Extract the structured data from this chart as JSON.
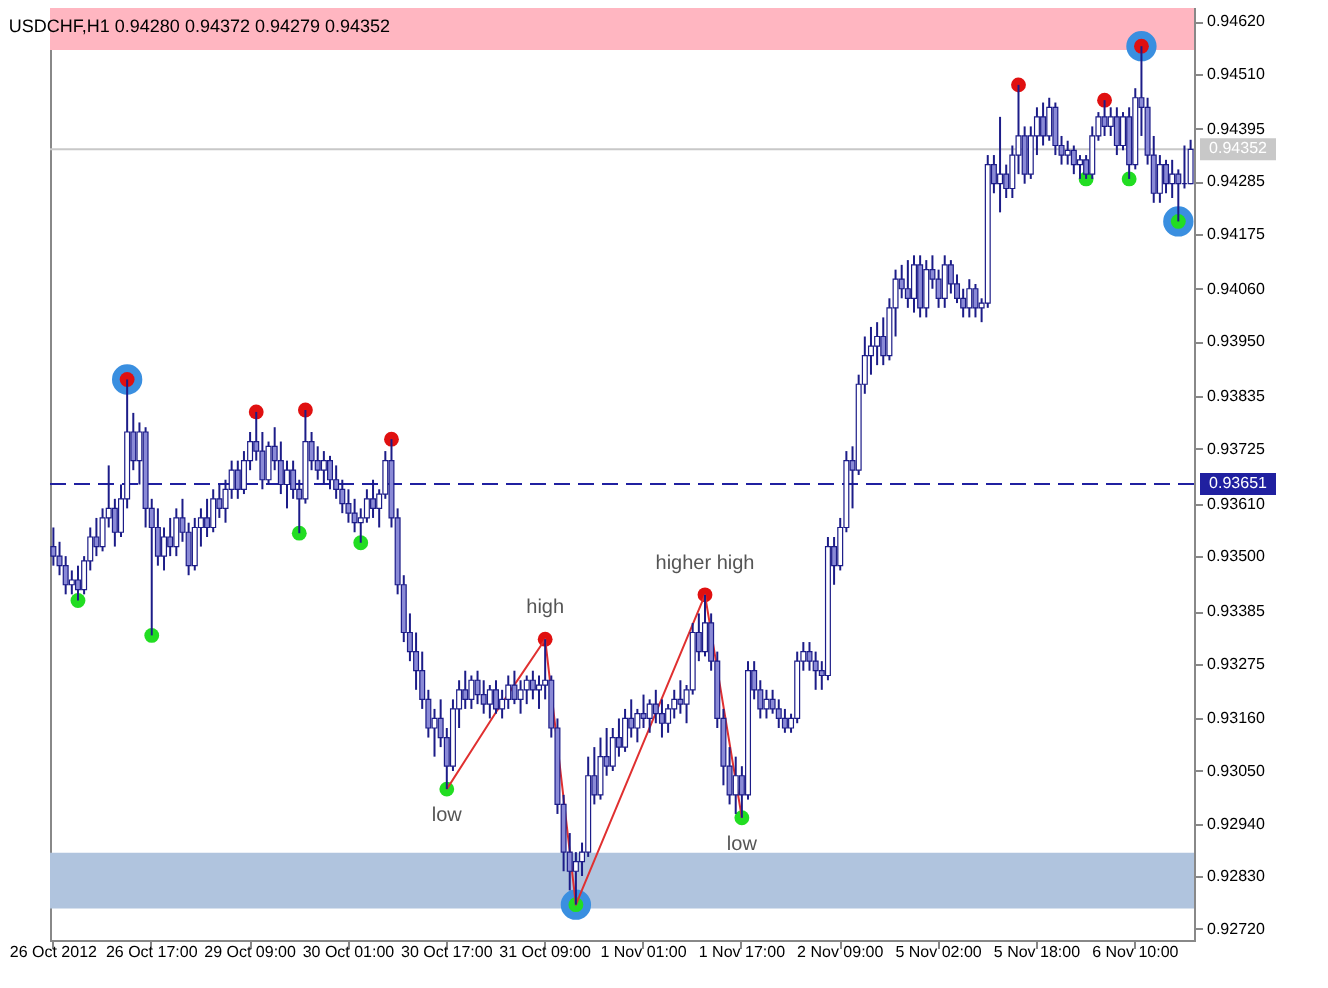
{
  "chart_data": {
    "type": "candlestick",
    "title": "USDCHF,H1  0.94280 0.94372 0.94279 0.94352",
    "color": "#1c1c88",
    "categories": [
      "26 Oct 2012",
      null,
      null,
      null,
      null,
      null,
      null,
      null,
      null,
      null,
      null,
      null,
      null,
      null,
      null,
      null,
      "26 Oct 17:00",
      null,
      null,
      null,
      null,
      null,
      null,
      null,
      null,
      null,
      null,
      null,
      null,
      null,
      null,
      null,
      "29 Oct 09:00",
      null,
      null,
      null,
      null,
      null,
      null,
      null,
      null,
      null,
      null,
      null,
      null,
      null,
      null,
      null,
      "30 Oct 01:00",
      null,
      null,
      null,
      null,
      null,
      null,
      null,
      null,
      null,
      null,
      null,
      null,
      null,
      null,
      null,
      "30 Oct 17:00",
      null,
      null,
      null,
      null,
      null,
      null,
      null,
      null,
      null,
      null,
      null,
      null,
      null,
      null,
      null,
      "31 Oct 09:00",
      null,
      null,
      null,
      null,
      null,
      null,
      null,
      null,
      null,
      null,
      null,
      null,
      null,
      null,
      null,
      "1 Nov 01:00",
      null,
      null,
      null,
      null,
      null,
      null,
      null,
      null,
      null,
      null,
      null,
      null,
      null,
      null,
      null,
      "1 Nov 17:00",
      null,
      null,
      null,
      null,
      null,
      null,
      null,
      null,
      null,
      null,
      null,
      null,
      null,
      null,
      null,
      "2 Nov 09:00",
      null,
      null,
      null,
      null,
      null,
      null,
      null,
      null,
      null,
      null,
      null,
      null,
      null,
      null,
      null,
      "5 Nov 02:00",
      null,
      null,
      null,
      null,
      null,
      null,
      null,
      null,
      null,
      null,
      null,
      null,
      null,
      null,
      null,
      "5 Nov 18:00",
      null,
      null,
      null,
      null,
      null,
      null,
      null,
      null,
      null,
      null,
      null,
      null,
      null,
      null,
      null,
      "6 Nov 10:00",
      null,
      null,
      null,
      null,
      null,
      null,
      null,
      null,
      null
    ],
    "ohlc": [
      [
        0.9352,
        0.9356,
        0.9348,
        0.935
      ],
      [
        0.935,
        0.9353,
        0.9346,
        0.9348
      ],
      [
        0.9348,
        0.935,
        0.9342,
        0.9344
      ],
      [
        0.9344,
        0.9347,
        0.9342,
        0.9345
      ],
      [
        0.9345,
        0.9348,
        0.93407,
        0.9343
      ],
      [
        0.9343,
        0.935,
        0.9342,
        0.9349
      ],
      [
        0.9349,
        0.9356,
        0.9347,
        0.9354
      ],
      [
        0.9354,
        0.9358,
        0.935,
        0.9352
      ],
      [
        0.9352,
        0.936,
        0.9351,
        0.9358
      ],
      [
        0.9358,
        0.9369,
        0.9356,
        0.936
      ],
      [
        0.936,
        0.9362,
        0.9352,
        0.9355
      ],
      [
        0.9355,
        0.9365,
        0.9354,
        0.9362
      ],
      [
        0.9362,
        0.9387,
        0.936,
        0.9376
      ],
      [
        0.9376,
        0.938,
        0.9368,
        0.937
      ],
      [
        0.937,
        0.9378,
        0.9365,
        0.9376
      ],
      [
        0.9376,
        0.9377,
        0.9356,
        0.936
      ],
      [
        0.936,
        0.9362,
        0.93334,
        0.9356
      ],
      [
        0.9356,
        0.936,
        0.9348,
        0.935
      ],
      [
        0.935,
        0.9356,
        0.9347,
        0.9354
      ],
      [
        0.9354,
        0.9358,
        0.935,
        0.9352
      ],
      [
        0.9352,
        0.936,
        0.935,
        0.9358
      ],
      [
        0.9358,
        0.9362,
        0.9353,
        0.9355
      ],
      [
        0.9355,
        0.9357,
        0.9346,
        0.9348
      ],
      [
        0.9348,
        0.9358,
        0.9347,
        0.9356
      ],
      [
        0.9356,
        0.936,
        0.9352,
        0.9358
      ],
      [
        0.9358,
        0.9362,
        0.9354,
        0.9356
      ],
      [
        0.9356,
        0.9364,
        0.9355,
        0.9362
      ],
      [
        0.9362,
        0.9365,
        0.9358,
        0.936
      ],
      [
        0.936,
        0.9366,
        0.9357,
        0.9364
      ],
      [
        0.9364,
        0.937,
        0.9362,
        0.9368
      ],
      [
        0.9368,
        0.937,
        0.9362,
        0.9364
      ],
      [
        0.9364,
        0.9372,
        0.9363,
        0.937
      ],
      [
        0.937,
        0.9376,
        0.9368,
        0.9374
      ],
      [
        0.9374,
        0.93802,
        0.937,
        0.9372
      ],
      [
        0.9372,
        0.9376,
        0.9364,
        0.9366
      ],
      [
        0.9366,
        0.9374,
        0.9365,
        0.9373
      ],
      [
        0.9373,
        0.9377,
        0.9368,
        0.937
      ],
      [
        0.937,
        0.9374,
        0.9363,
        0.9365
      ],
      [
        0.9365,
        0.937,
        0.936,
        0.9368
      ],
      [
        0.9368,
        0.937,
        0.9362,
        0.9364
      ],
      [
        0.9364,
        0.9366,
        0.93548,
        0.9362
      ],
      [
        0.9362,
        0.93806,
        0.9361,
        0.9374
      ],
      [
        0.9374,
        0.9376,
        0.9368,
        0.937
      ],
      [
        0.937,
        0.9373,
        0.9366,
        0.9368
      ],
      [
        0.9368,
        0.9372,
        0.9365,
        0.937
      ],
      [
        0.937,
        0.9371,
        0.9364,
        0.9366
      ],
      [
        0.9366,
        0.9369,
        0.9362,
        0.9364
      ],
      [
        0.9364,
        0.9366,
        0.9359,
        0.9361
      ],
      [
        0.9361,
        0.9364,
        0.9357,
        0.9359
      ],
      [
        0.9359,
        0.9362,
        0.9355,
        0.9357
      ],
      [
        0.9357,
        0.936,
        0.93528,
        0.9358
      ],
      [
        0.9358,
        0.9364,
        0.9357,
        0.9362
      ],
      [
        0.9362,
        0.9366,
        0.9358,
        0.936
      ],
      [
        0.936,
        0.9364,
        0.9356,
        0.9363
      ],
      [
        0.9363,
        0.9372,
        0.9362,
        0.937
      ],
      [
        0.937,
        0.93745,
        0.9356,
        0.9358
      ],
      [
        0.9358,
        0.936,
        0.9342,
        0.9344
      ],
      [
        0.9344,
        0.9346,
        0.9332,
        0.9334
      ],
      [
        0.9334,
        0.9338,
        0.9328,
        0.933
      ],
      [
        0.933,
        0.9334,
        0.9322,
        0.9326
      ],
      [
        0.9326,
        0.933,
        0.9318,
        0.932
      ],
      [
        0.932,
        0.9322,
        0.9312,
        0.9314
      ],
      [
        0.9314,
        0.9318,
        0.9308,
        0.9316
      ],
      [
        0.9316,
        0.932,
        0.931,
        0.9312
      ],
      [
        0.9312,
        0.9314,
        0.93012,
        0.9306
      ],
      [
        0.9306,
        0.932,
        0.9305,
        0.9318
      ],
      [
        0.9318,
        0.9324,
        0.9314,
        0.9322
      ],
      [
        0.9322,
        0.9326,
        0.9318,
        0.932
      ],
      [
        0.932,
        0.9325,
        0.9318,
        0.9324
      ],
      [
        0.9324,
        0.9326,
        0.9319,
        0.9321
      ],
      [
        0.9321,
        0.9324,
        0.9317,
        0.9319
      ],
      [
        0.9319,
        0.9323,
        0.9316,
        0.9322
      ],
      [
        0.9322,
        0.9324,
        0.9317,
        0.9318
      ],
      [
        0.9318,
        0.9322,
        0.9316,
        0.932
      ],
      [
        0.932,
        0.9325,
        0.9318,
        0.9323
      ],
      [
        0.9323,
        0.9326,
        0.9319,
        0.932
      ],
      [
        0.932,
        0.9324,
        0.9317,
        0.9322
      ],
      [
        0.9322,
        0.9325,
        0.9319,
        0.9324
      ],
      [
        0.9324,
        0.9326,
        0.932,
        0.9322
      ],
      [
        0.9322,
        0.9325,
        0.9318,
        0.9323
      ],
      [
        0.9323,
        0.93326,
        0.932,
        0.9324
      ],
      [
        0.9324,
        0.9325,
        0.9312,
        0.9314
      ],
      [
        0.9314,
        0.9316,
        0.9296,
        0.9298
      ],
      [
        0.9298,
        0.93,
        0.9284,
        0.9288
      ],
      [
        0.9288,
        0.9292,
        0.928,
        0.9284
      ],
      [
        0.9284,
        0.9288,
        0.9277,
        0.9286
      ],
      [
        0.9286,
        0.929,
        0.9283,
        0.9288
      ],
      [
        0.9288,
        0.9308,
        0.9287,
        0.9304
      ],
      [
        0.9304,
        0.931,
        0.9298,
        0.93
      ],
      [
        0.93,
        0.9312,
        0.9299,
        0.9308
      ],
      [
        0.9308,
        0.9314,
        0.9304,
        0.9306
      ],
      [
        0.9306,
        0.9314,
        0.9305,
        0.9312
      ],
      [
        0.9312,
        0.9316,
        0.9308,
        0.931
      ],
      [
        0.931,
        0.9318,
        0.9309,
        0.9316
      ],
      [
        0.9316,
        0.932,
        0.9312,
        0.9314
      ],
      [
        0.9314,
        0.9318,
        0.9311,
        0.9317
      ],
      [
        0.9317,
        0.9321,
        0.9314,
        0.9316
      ],
      [
        0.9316,
        0.932,
        0.9313,
        0.9319
      ],
      [
        0.9319,
        0.9322,
        0.9315,
        0.9317
      ],
      [
        0.9317,
        0.932,
        0.9312,
        0.9315
      ],
      [
        0.9315,
        0.9319,
        0.9313,
        0.9318
      ],
      [
        0.9318,
        0.9322,
        0.9316,
        0.932
      ],
      [
        0.932,
        0.9324,
        0.9317,
        0.9319
      ],
      [
        0.9319,
        0.9323,
        0.9315,
        0.9322
      ],
      [
        0.9322,
        0.9336,
        0.9321,
        0.9334
      ],
      [
        0.9334,
        0.9338,
        0.9328,
        0.933
      ],
      [
        0.933,
        0.93419,
        0.9329,
        0.9336
      ],
      [
        0.9336,
        0.9338,
        0.9326,
        0.9328
      ],
      [
        0.9328,
        0.933,
        0.9314,
        0.9316
      ],
      [
        0.9316,
        0.9318,
        0.9302,
        0.9306
      ],
      [
        0.9306,
        0.931,
        0.9298,
        0.93
      ],
      [
        0.93,
        0.9308,
        0.9296,
        0.9304
      ],
      [
        0.9304,
        0.9306,
        0.92952,
        0.93
      ],
      [
        0.93,
        0.9328,
        0.9299,
        0.9326
      ],
      [
        0.9326,
        0.9328,
        0.932,
        0.9322
      ],
      [
        0.9322,
        0.9324,
        0.9316,
        0.9318
      ],
      [
        0.9318,
        0.9322,
        0.9316,
        0.932
      ],
      [
        0.932,
        0.9322,
        0.9317,
        0.9318
      ],
      [
        0.9318,
        0.932,
        0.9314,
        0.9316
      ],
      [
        0.9316,
        0.9318,
        0.9313,
        0.9314
      ],
      [
        0.9314,
        0.9317,
        0.9313,
        0.9316
      ],
      [
        0.9316,
        0.933,
        0.9315,
        0.9328
      ],
      [
        0.9328,
        0.9332,
        0.9326,
        0.933
      ],
      [
        0.933,
        0.9332,
        0.9326,
        0.9328
      ],
      [
        0.9328,
        0.933,
        0.9322,
        0.9326
      ],
      [
        0.9326,
        0.9328,
        0.9322,
        0.9325
      ],
      [
        0.9325,
        0.9354,
        0.9324,
        0.9352
      ],
      [
        0.9352,
        0.9354,
        0.9344,
        0.9348
      ],
      [
        0.9348,
        0.9358,
        0.9347,
        0.9356
      ],
      [
        0.9356,
        0.9372,
        0.9355,
        0.937
      ],
      [
        0.937,
        0.9373,
        0.936,
        0.9368
      ],
      [
        0.9368,
        0.9388,
        0.9367,
        0.9386
      ],
      [
        0.9386,
        0.9396,
        0.9384,
        0.9392
      ],
      [
        0.9392,
        0.9398,
        0.9388,
        0.9394
      ],
      [
        0.9394,
        0.9399,
        0.939,
        0.9396
      ],
      [
        0.9396,
        0.94,
        0.939,
        0.9392
      ],
      [
        0.9392,
        0.9404,
        0.9391,
        0.9402
      ],
      [
        0.9402,
        0.941,
        0.9396,
        0.9408
      ],
      [
        0.9408,
        0.9411,
        0.9404,
        0.9406
      ],
      [
        0.9406,
        0.9412,
        0.9402,
        0.9404
      ],
      [
        0.9404,
        0.9413,
        0.9401,
        0.9411
      ],
      [
        0.9411,
        0.9413,
        0.94,
        0.9402
      ],
      [
        0.9402,
        0.9412,
        0.94,
        0.941
      ],
      [
        0.941,
        0.9413,
        0.9406,
        0.9408
      ],
      [
        0.9408,
        0.941,
        0.9402,
        0.9404
      ],
      [
        0.9404,
        0.9413,
        0.9402,
        0.9411
      ],
      [
        0.9411,
        0.9412,
        0.9405,
        0.9407
      ],
      [
        0.9407,
        0.9409,
        0.9403,
        0.9404
      ],
      [
        0.9404,
        0.9406,
        0.94,
        0.9402
      ],
      [
        0.9402,
        0.9408,
        0.94,
        0.9406
      ],
      [
        0.9406,
        0.9407,
        0.94,
        0.9402
      ],
      [
        0.9402,
        0.9404,
        0.9399,
        0.9403
      ],
      [
        0.9403,
        0.9434,
        0.9402,
        0.9432
      ],
      [
        0.9432,
        0.9434,
        0.9426,
        0.9428
      ],
      [
        0.9428,
        0.9442,
        0.9422,
        0.943
      ],
      [
        0.943,
        0.9432,
        0.9425,
        0.9427
      ],
      [
        0.9427,
        0.9436,
        0.9425,
        0.9434
      ],
      [
        0.9434,
        0.94487,
        0.943,
        0.9438
      ],
      [
        0.9438,
        0.944,
        0.9428,
        0.943
      ],
      [
        0.943,
        0.944,
        0.9429,
        0.9438
      ],
      [
        0.9438,
        0.9444,
        0.9434,
        0.9442
      ],
      [
        0.9442,
        0.9445,
        0.9436,
        0.9438
      ],
      [
        0.9438,
        0.9446,
        0.9437,
        0.9444
      ],
      [
        0.9444,
        0.9445,
        0.9434,
        0.9436
      ],
      [
        0.9436,
        0.9438,
        0.9432,
        0.9434
      ],
      [
        0.9434,
        0.9437,
        0.9432,
        0.9435
      ],
      [
        0.9435,
        0.9436,
        0.943,
        0.9432
      ],
      [
        0.9432,
        0.9434,
        0.9429,
        0.9433
      ],
      [
        0.9433,
        0.9434,
        0.9429,
        0.943
      ],
      [
        0.943,
        0.944,
        0.9429,
        0.9438
      ],
      [
        0.9438,
        0.9443,
        0.9437,
        0.9442
      ],
      [
        0.9442,
        0.94455,
        0.9438,
        0.944
      ],
      [
        0.944,
        0.9444,
        0.9438,
        0.9442
      ],
      [
        0.9442,
        0.9444,
        0.9434,
        0.9436
      ],
      [
        0.9436,
        0.9443,
        0.9435,
        0.9442
      ],
      [
        0.9442,
        0.9444,
        0.9429,
        0.9432
      ],
      [
        0.9432,
        0.9448,
        0.9431,
        0.9446
      ],
      [
        0.9446,
        0.94568,
        0.9438,
        0.9444
      ],
      [
        0.9444,
        0.9446,
        0.9432,
        0.9434
      ],
      [
        0.9434,
        0.9438,
        0.9424,
        0.9426
      ],
      [
        0.9426,
        0.9434,
        0.9424,
        0.9432
      ],
      [
        0.9432,
        0.9433,
        0.9426,
        0.9428
      ],
      [
        0.9428,
        0.9433,
        0.9425,
        0.943
      ],
      [
        0.943,
        0.9431,
        0.94201,
        0.9428
      ],
      [
        0.9428,
        0.9436,
        0.9427,
        0.9428
      ],
      [
        0.9428,
        0.94372,
        0.94279,
        0.94352
      ]
    ],
    "series": [
      {
        "type": "scatter",
        "color": "#3a8fe0",
        "values": [
          null,
          null,
          null,
          null,
          null,
          null,
          null,
          null,
          null,
          null,
          null,
          null,
          0.9387,
          null,
          null,
          null,
          null,
          null,
          null,
          null,
          null,
          null,
          null,
          null,
          null,
          null,
          null,
          null,
          null,
          null,
          null,
          null,
          null,
          null,
          null,
          null,
          null,
          null,
          null,
          null,
          null,
          null,
          null,
          null,
          null,
          null,
          null,
          null,
          null,
          null,
          null,
          null,
          null,
          null,
          null,
          null,
          null,
          null,
          null,
          null,
          null,
          null,
          null,
          null,
          null,
          null,
          null,
          null,
          null,
          null,
          null,
          null,
          null,
          null,
          null,
          null,
          null,
          null,
          null,
          null,
          null,
          null,
          null,
          null,
          null,
          0.9277,
          null,
          null,
          null,
          null,
          null,
          null,
          null,
          null,
          null,
          null,
          null,
          null,
          null,
          null,
          null,
          null,
          null,
          null,
          null,
          null,
          null,
          null,
          null,
          null,
          null,
          null,
          null,
          null,
          null,
          null,
          null,
          null,
          null,
          null,
          null,
          null,
          null,
          null,
          null,
          null,
          null,
          null,
          null,
          null,
          null,
          null,
          null,
          null,
          null,
          null,
          null,
          null,
          null,
          null,
          null,
          null,
          null,
          null,
          null,
          null,
          null,
          null,
          null,
          null,
          null,
          null,
          null,
          null,
          null,
          null,
          null,
          null,
          null,
          null,
          null,
          null,
          null,
          null,
          null,
          null,
          null,
          null,
          null,
          null,
          null,
          null,
          null,
          null,
          null,
          null,
          null,
          0.94568,
          null,
          null,
          null,
          null,
          null,
          0.94201,
          null,
          null
        ]
      },
      {
        "type": "scatter",
        "color": "#e01010",
        "values": [
          null,
          null,
          null,
          null,
          null,
          null,
          null,
          null,
          null,
          null,
          null,
          null,
          0.9387,
          null,
          null,
          null,
          null,
          null,
          null,
          null,
          null,
          null,
          null,
          null,
          null,
          null,
          null,
          null,
          null,
          null,
          null,
          null,
          null,
          0.93802,
          null,
          null,
          null,
          null,
          null,
          null,
          null,
          0.93806,
          null,
          null,
          null,
          null,
          null,
          null,
          null,
          null,
          null,
          null,
          null,
          null,
          null,
          0.93745,
          null,
          null,
          null,
          null,
          null,
          null,
          null,
          null,
          null,
          null,
          null,
          null,
          null,
          null,
          null,
          null,
          null,
          null,
          null,
          null,
          null,
          null,
          null,
          null,
          0.93326,
          null,
          null,
          null,
          null,
          null,
          null,
          null,
          null,
          null,
          null,
          null,
          null,
          null,
          null,
          null,
          null,
          null,
          null,
          null,
          null,
          null,
          null,
          null,
          null,
          null,
          0.93419,
          null,
          null,
          null,
          null,
          null,
          null,
          null,
          null,
          null,
          null,
          null,
          null,
          null,
          null,
          null,
          null,
          null,
          null,
          null,
          null,
          null,
          null,
          null,
          null,
          null,
          null,
          null,
          null,
          null,
          null,
          null,
          null,
          null,
          null,
          null,
          null,
          null,
          null,
          null,
          null,
          null,
          null,
          null,
          null,
          null,
          null,
          null,
          null,
          null,
          null,
          0.94487,
          null,
          null,
          null,
          null,
          null,
          null,
          null,
          null,
          null,
          null,
          null,
          null,
          null,
          0.94455,
          null,
          null,
          null,
          null,
          null,
          0.94568,
          null,
          null,
          null,
          null,
          null,
          null,
          null,
          null
        ]
      },
      {
        "type": "scatter",
        "color": "#22dd22",
        "values": [
          null,
          null,
          null,
          null,
          0.93407,
          null,
          null,
          null,
          null,
          null,
          null,
          null,
          null,
          null,
          null,
          null,
          0.93334,
          null,
          null,
          null,
          null,
          null,
          null,
          null,
          null,
          null,
          null,
          null,
          null,
          null,
          null,
          null,
          null,
          null,
          null,
          null,
          null,
          null,
          null,
          null,
          0.93548,
          null,
          null,
          null,
          null,
          null,
          null,
          null,
          null,
          null,
          0.93528,
          null,
          null,
          null,
          null,
          null,
          null,
          null,
          null,
          null,
          null,
          null,
          null,
          null,
          0.93012,
          null,
          null,
          null,
          null,
          null,
          null,
          null,
          null,
          null,
          null,
          null,
          null,
          null,
          null,
          null,
          null,
          null,
          null,
          null,
          null,
          0.9277,
          null,
          null,
          null,
          null,
          null,
          null,
          null,
          null,
          null,
          null,
          null,
          null,
          null,
          null,
          null,
          null,
          null,
          null,
          null,
          null,
          null,
          null,
          null,
          null,
          null,
          null,
          0.92952,
          null,
          null,
          null,
          null,
          null,
          null,
          null,
          null,
          null,
          null,
          null,
          null,
          null,
          null,
          null,
          null,
          null,
          null,
          null,
          null,
          null,
          null,
          null,
          null,
          null,
          null,
          null,
          null,
          null,
          null,
          null,
          null,
          null,
          null,
          null,
          null,
          null,
          null,
          null,
          null,
          null,
          null,
          null,
          null,
          null,
          null,
          null,
          null,
          null,
          null,
          null,
          null,
          null,
          null,
          null,
          0.9429,
          null,
          null,
          null,
          null,
          null,
          null,
          0.9429,
          null,
          null,
          null,
          null,
          null,
          null,
          null,
          0.94201,
          null,
          null
        ]
      },
      {
        "type": "line",
        "color": "#e03030",
        "values": [
          null,
          null,
          null,
          null,
          null,
          null,
          null,
          null,
          null,
          null,
          null,
          null,
          null,
          null,
          null,
          null,
          null,
          null,
          null,
          null,
          null,
          null,
          null,
          null,
          null,
          null,
          null,
          null,
          null,
          null,
          null,
          null,
          null,
          null,
          null,
          null,
          null,
          null,
          null,
          null,
          null,
          null,
          null,
          null,
          null,
          null,
          null,
          null,
          null,
          null,
          null,
          null,
          null,
          null,
          null,
          null,
          null,
          null,
          null,
          null,
          null,
          null,
          null,
          null,
          0.93012,
          null,
          null,
          null,
          null,
          null,
          null,
          null,
          0.93173,
          null,
          null,
          null,
          null,
          null,
          null,
          null,
          0.93326,
          null,
          null,
          null,
          null,
          0.9277,
          null,
          null,
          null,
          null,
          null,
          null,
          null,
          null,
          null,
          null,
          null,
          null,
          null,
          null,
          null,
          null,
          null,
          null,
          null,
          null,
          0.93419,
          null,
          null,
          null,
          null,
          null,
          0.92952,
          null,
          null,
          null,
          null,
          null,
          null,
          null,
          null,
          null,
          null,
          null,
          null,
          null,
          null,
          null,
          null,
          null,
          null,
          null,
          null,
          null,
          null,
          null,
          null,
          null,
          null,
          null,
          null,
          null,
          null,
          null,
          null,
          null,
          null,
          null,
          null,
          null,
          null,
          null,
          null,
          null,
          null,
          null,
          null,
          null,
          null,
          null,
          null,
          null,
          null,
          null,
          null,
          null,
          null,
          null,
          null,
          null,
          null,
          null,
          null,
          null,
          null,
          null,
          null,
          null,
          null,
          null,
          null,
          null,
          null,
          null,
          null,
          null
        ]
      }
    ],
    "annotations": [
      {
        "text": "high",
        "y": 0.93326
      },
      {
        "text": "low",
        "y": 0.93012
      },
      {
        "text": "higher high",
        "y": 0.93419
      },
      {
        "text": "low",
        "y": 0.92952
      }
    ],
    "ref_lines": [
      {
        "axis": "y",
        "value": 0.93651,
        "label": "0.93651",
        "color": "#2020a0",
        "line_style": "dashed"
      },
      {
        "axis": "y",
        "value": 0.94352,
        "label": "0.94352",
        "color": "#c8c8c8",
        "line_style": "solid"
      }
    ],
    "bands": [
      {
        "axis": "y",
        "from": 0.9456,
        "to": 0.94648,
        "color": "#ffb6c1"
      },
      {
        "axis": "y",
        "from": 0.92762,
        "to": 0.92879,
        "color": "#b0c4de"
      }
    ],
    "ylim": [
      0.92696,
      0.94648
    ],
    "yticks": [
      {
        "value": 0.9462,
        "label": "0.94620"
      },
      {
        "value": 0.9451,
        "label": "0.94510"
      },
      {
        "value": 0.94395,
        "label": "0.94395"
      },
      {
        "value": 0.94285,
        "label": "0.94285"
      },
      {
        "value": 0.94175,
        "label": "0.94175"
      },
      {
        "value": 0.9406,
        "label": "0.94060"
      },
      {
        "value": 0.9395,
        "label": "0.93950"
      },
      {
        "value": 0.93835,
        "label": "0.93835"
      },
      {
        "value": 0.93725,
        "label": "0.93725"
      },
      {
        "value": 0.9361,
        "label": "0.93610"
      },
      {
        "value": 0.935,
        "label": "0.93500"
      },
      {
        "value": 0.93385,
        "label": "0.93385"
      },
      {
        "value": 0.93275,
        "label": "0.93275"
      },
      {
        "value": 0.9316,
        "label": "0.93160"
      },
      {
        "value": 0.9305,
        "label": "0.93050"
      },
      {
        "value": 0.9294,
        "label": "0.92940"
      },
      {
        "value": 0.9283,
        "label": "0.92830"
      },
      {
        "value": 0.9272,
        "label": "0.92720"
      }
    ]
  }
}
